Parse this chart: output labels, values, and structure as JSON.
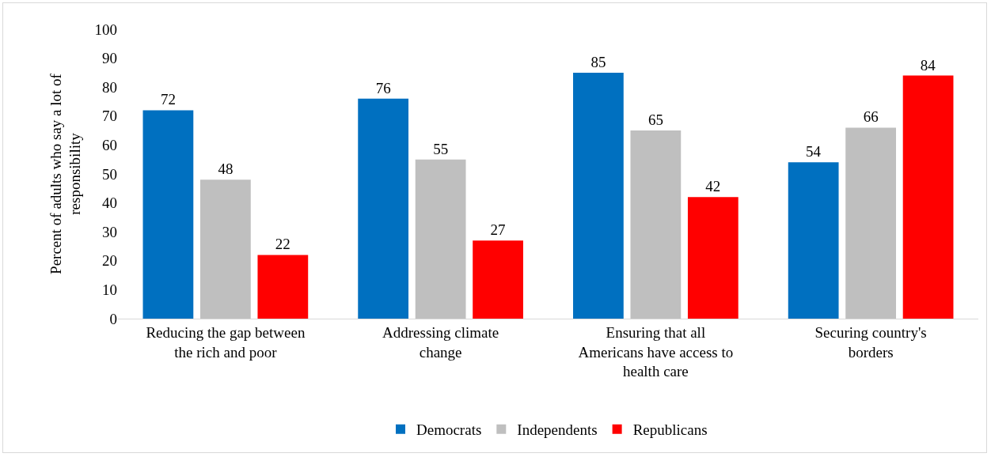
{
  "chart_data": {
    "type": "bar",
    "ylabel": "Percent of adults who say a lot of responsibility",
    "categories": [
      "Reducing the gap between the rich and poor",
      "Addressing climate change",
      "Ensuring that all Americans have access to health care",
      "Securing country's borders"
    ],
    "series": [
      {
        "name": "Democrats",
        "color": "#0070c0",
        "values": [
          72,
          76,
          85,
          54
        ]
      },
      {
        "name": "Independents",
        "color": "#bfbfbf",
        "values": [
          48,
          55,
          65,
          66
        ]
      },
      {
        "name": "Republicans",
        "color": "#ff0000",
        "values": [
          22,
          27,
          42,
          84
        ]
      }
    ],
    "ylim": [
      0,
      100
    ],
    "yticks": [
      0,
      10,
      20,
      30,
      40,
      50,
      60,
      70,
      80,
      90,
      100
    ],
    "grid": false,
    "legend": "bottom",
    "data_labels": true
  }
}
